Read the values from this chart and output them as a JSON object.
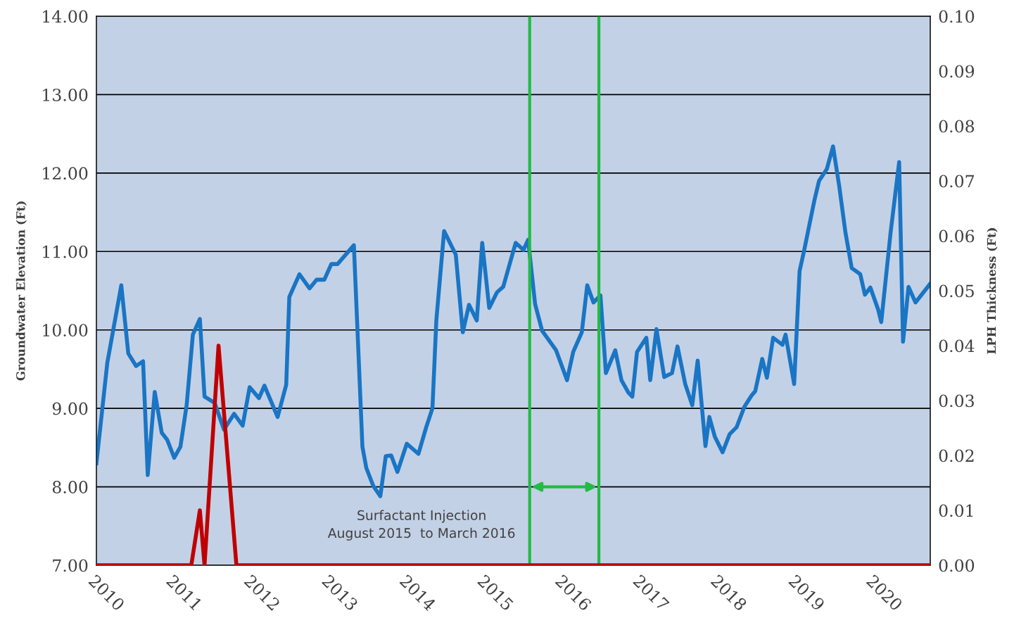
{
  "chart_data": {
    "type": "line",
    "ylabel": "Groundwater Elevation (Ft)",
    "y2label": "LPH Thickness (Ft)",
    "xlim": [
      2010,
      2020.72
    ],
    "xticks": [
      {
        "value": 2010,
        "label": "2010"
      },
      {
        "value": 2011,
        "label": "2011"
      },
      {
        "value": 2012,
        "label": "2012"
      },
      {
        "value": 2013,
        "label": "2013"
      },
      {
        "value": 2014,
        "label": "2014"
      },
      {
        "value": 2015,
        "label": "2015"
      },
      {
        "value": 2016,
        "label": "2016"
      },
      {
        "value": 2017,
        "label": "2017"
      },
      {
        "value": 2018,
        "label": "2018"
      },
      {
        "value": 2019,
        "label": "2019"
      },
      {
        "value": 2020,
        "label": "2020"
      }
    ],
    "ylim": [
      7,
      14
    ],
    "yticks": [
      {
        "value": 7,
        "label": "7.00"
      },
      {
        "value": 8,
        "label": "8.00"
      },
      {
        "value": 9,
        "label": "9.00"
      },
      {
        "value": 10,
        "label": "10.00"
      },
      {
        "value": 11,
        "label": "11.00"
      },
      {
        "value": 12,
        "label": "12.00"
      },
      {
        "value": 13,
        "label": "13.00"
      },
      {
        "value": 14,
        "label": "14.00"
      }
    ],
    "y2lim": [
      0,
      0.1
    ],
    "y2ticks": [
      {
        "value": 0,
        "label": "0.00"
      },
      {
        "value": 0.01,
        "label": "0.01"
      },
      {
        "value": 0.02,
        "label": "0.02"
      },
      {
        "value": 0.03,
        "label": "0.03"
      },
      {
        "value": 0.04,
        "label": "0.04"
      },
      {
        "value": 0.05,
        "label": "0.05"
      },
      {
        "value": 0.06,
        "label": "0.06"
      },
      {
        "value": 0.07,
        "label": "0.07"
      },
      {
        "value": 0.08,
        "label": "0.08"
      },
      {
        "value": 0.09,
        "label": "0.09"
      },
      {
        "value": 0.1,
        "label": "0.10"
      }
    ],
    "grid": "y",
    "marker": "none",
    "line_style": "solid",
    "series": [
      {
        "color": "#1a75c4",
        "x": [
          2010.0,
          2010.14,
          2010.32,
          2010.41,
          2010.51,
          2010.6,
          2010.66,
          2010.75,
          2010.84,
          2010.91,
          2011.0,
          2011.08,
          2011.16,
          2011.24,
          2011.33,
          2011.39,
          2011.52,
          2011.64,
          2011.77,
          2011.88,
          2011.97,
          2012.09,
          2012.16,
          2012.33,
          2012.44,
          2012.48,
          2012.61,
          2012.74,
          2012.83,
          2012.93,
          2013.02,
          2013.1,
          2013.31,
          2013.42,
          2013.47,
          2013.56,
          2013.65,
          2013.72,
          2013.79,
          2013.87,
          2013.99,
          2014.14,
          2014.24,
          2014.32,
          2014.37,
          2014.47,
          2014.62,
          2014.71,
          2014.79,
          2014.89,
          2014.96,
          2015.05,
          2015.15,
          2015.23,
          2015.39,
          2015.49,
          2015.55,
          2015.64,
          2015.73,
          2015.91,
          2016.05,
          2016.13,
          2016.24,
          2016.31,
          2016.39,
          2016.48,
          2016.55,
          2016.67,
          2016.75,
          2016.84,
          2016.89,
          2016.95,
          2017.07,
          2017.12,
          2017.2,
          2017.3,
          2017.4,
          2017.47,
          2017.57,
          2017.66,
          2017.73,
          2017.83,
          2017.88,
          2017.95,
          2018.05,
          2018.14,
          2018.23,
          2018.33,
          2018.42,
          2018.47,
          2018.56,
          2018.62,
          2018.7,
          2018.82,
          2018.86,
          2018.97,
          2019.04,
          2019.1,
          2019.23,
          2019.29,
          2019.39,
          2019.47,
          2019.55,
          2019.63,
          2019.71,
          2019.82,
          2019.88,
          2019.95,
          2020.05,
          2020.09,
          2020.21,
          2020.32,
          2020.37,
          2020.44,
          2020.53,
          2020.72
        ],
        "values": [
          8.3,
          9.58,
          10.57,
          9.7,
          9.54,
          9.6,
          8.15,
          9.21,
          8.69,
          8.6,
          8.37,
          8.51,
          9.04,
          9.94,
          10.14,
          9.15,
          9.07,
          8.73,
          8.93,
          8.78,
          9.27,
          9.13,
          9.29,
          8.89,
          9.3,
          10.42,
          10.71,
          10.53,
          10.64,
          10.64,
          10.84,
          10.84,
          11.08,
          8.51,
          8.24,
          8.01,
          7.88,
          8.39,
          8.4,
          8.19,
          8.55,
          8.42,
          8.76,
          9.0,
          10.12,
          11.26,
          10.96,
          9.97,
          10.32,
          10.12,
          11.11,
          10.28,
          10.48,
          10.55,
          11.11,
          11.02,
          11.15,
          10.33,
          9.99,
          9.74,
          9.36,
          9.72,
          9.97,
          10.57,
          10.35,
          10.44,
          9.45,
          9.74,
          9.36,
          9.2,
          9.15,
          9.72,
          9.9,
          9.36,
          10.01,
          9.4,
          9.45,
          9.79,
          9.31,
          9.04,
          9.61,
          8.52,
          8.89,
          8.64,
          8.44,
          8.67,
          8.76,
          9.02,
          9.16,
          9.22,
          9.63,
          9.39,
          9.9,
          9.81,
          9.94,
          9.31,
          10.75,
          11.02,
          11.65,
          11.9,
          12.05,
          12.34,
          11.83,
          11.24,
          10.79,
          10.71,
          10.45,
          10.54,
          10.26,
          10.1,
          11.24,
          12.14,
          9.85,
          10.55,
          10.35,
          10.59
        ]
      },
      {
        "axis": "y2",
        "color": "#c00000",
        "x": [
          2010.0,
          2011.22,
          2011.33,
          2011.39,
          2011.57,
          2011.8,
          2020.72
        ],
        "values": [
          0,
          0,
          0.01,
          0,
          0.04,
          0,
          0
        ]
      }
    ],
    "ref_lines": [
      {
        "axis": "x",
        "value": 2015.57,
        "color": "#22bb44",
        "line_style": "solid"
      },
      {
        "axis": "x",
        "value": 2016.46,
        "color": "#22bb44",
        "line_style": "solid"
      }
    ],
    "annotations": [
      "Surfactant Injection\nAugust 2015  to March 2016"
    ]
  }
}
